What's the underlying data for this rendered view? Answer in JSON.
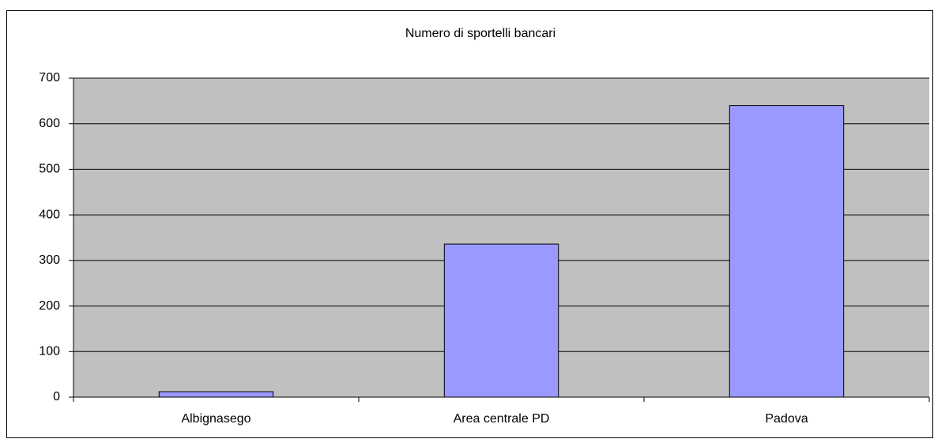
{
  "chart_data": {
    "type": "bar",
    "title": "Numero di sportelli bancari",
    "categories": [
      "Albignasego",
      "Area centrale PD",
      "Padova"
    ],
    "values": [
      12,
      336,
      640
    ],
    "color": "#9999ff",
    "ylim": [
      0,
      700
    ],
    "yticks": [
      0,
      100,
      200,
      300,
      400,
      500,
      600,
      700
    ],
    "grid": true
  }
}
